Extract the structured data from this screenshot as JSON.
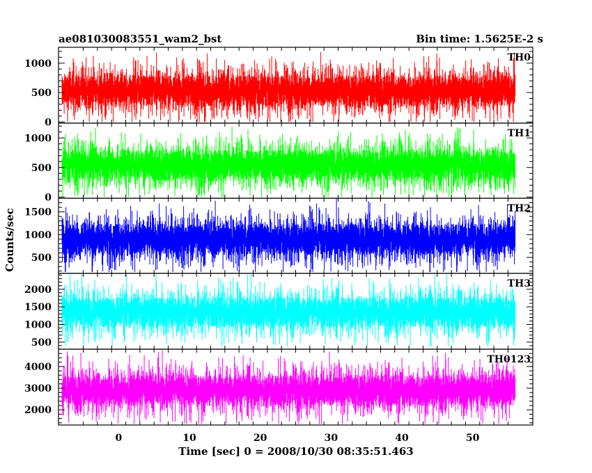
{
  "chart_data": {
    "type": "line",
    "title": "ae081030083551_wam2_bst",
    "bin_time": "Bin time: 1.5625E-2 s",
    "xlabel": "Time [sec] 0 = 2008/10/30 08:35:51.463",
    "ylabel": "Counts/sec",
    "xlim": [
      -8.5,
      58.5
    ],
    "x_data_range": [
      -8,
      56
    ],
    "x_ticks": [
      0,
      10,
      20,
      30,
      40,
      50
    ],
    "x_tick_labels": [
      "0",
      "10",
      "20",
      "30",
      "40",
      "50"
    ],
    "panels": [
      {
        "name": "TH0",
        "color": "#ff0000",
        "ylim": [
          -20,
          1270
        ],
        "y_ticks": [
          0,
          500,
          1000
        ],
        "y_tick_labels": [
          "0",
          "500",
          "1000"
        ],
        "mean": 530,
        "min": 0,
        "max": 1250
      },
      {
        "name": "TH1",
        "color": "#00ff00",
        "ylim": [
          -20,
          1250
        ],
        "y_ticks": [
          0,
          500,
          1000
        ],
        "y_tick_labels": [
          "0",
          "500",
          "1000"
        ],
        "mean": 540,
        "min": 0,
        "max": 1230
      },
      {
        "name": "TH2",
        "color": "#0000ff",
        "ylim": [
          150,
          1800
        ],
        "y_ticks": [
          500,
          1000,
          1500
        ],
        "y_tick_labels": [
          "500",
          "1000",
          "1500"
        ],
        "mean": 900,
        "min": 180,
        "max": 1790
      },
      {
        "name": "TH3",
        "color": "#00ffff",
        "ylim": [
          300,
          2450
        ],
        "y_ticks": [
          500,
          1000,
          1500,
          2000
        ],
        "y_tick_labels": [
          "500",
          "1000",
          "1500",
          "2000"
        ],
        "mean": 1350,
        "min": 380,
        "max": 2420
      },
      {
        "name": "TH0123",
        "color": "#ff00ff",
        "ylim": [
          1300,
          4800
        ],
        "y_ticks": [
          2000,
          3000,
          4000
        ],
        "y_tick_labels": [
          "2000",
          "3000",
          "4000"
        ],
        "mean": 2900,
        "min": 1350,
        "max": 4750
      }
    ]
  }
}
